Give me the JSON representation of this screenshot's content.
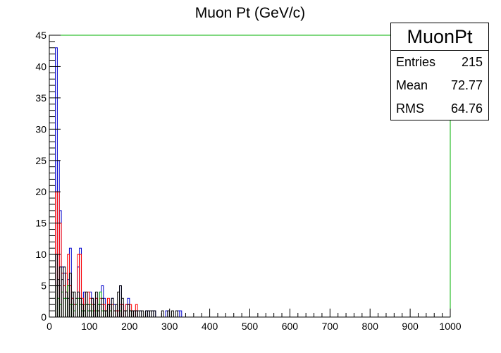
{
  "chart_data": {
    "type": "histogram",
    "title": "Muon Pt (GeV/c)",
    "xlim": [
      0,
      1000
    ],
    "ylim": [
      0,
      45
    ],
    "x_ticks": [
      0,
      100,
      200,
      300,
      400,
      500,
      600,
      700,
      800,
      900,
      1000
    ],
    "y_ticks": [
      0,
      5,
      10,
      15,
      20,
      25,
      30,
      35,
      40,
      45
    ],
    "bin_width": 5,
    "series": [
      {
        "color": "#0000cc",
        "bins": [
          [
            15,
            43
          ],
          [
            20,
            25
          ],
          [
            25,
            17
          ],
          [
            30,
            8
          ],
          [
            35,
            7
          ],
          [
            40,
            3
          ],
          [
            45,
            6
          ],
          [
            50,
            11
          ],
          [
            55,
            3
          ],
          [
            60,
            2
          ],
          [
            65,
            2
          ],
          [
            70,
            8
          ],
          [
            75,
            11
          ],
          [
            80,
            1
          ],
          [
            85,
            4
          ],
          [
            90,
            2
          ],
          [
            95,
            1
          ],
          [
            100,
            4
          ],
          [
            105,
            3
          ],
          [
            110,
            1
          ],
          [
            115,
            3
          ],
          [
            120,
            2
          ],
          [
            125,
            4
          ],
          [
            130,
            5
          ],
          [
            135,
            3
          ],
          [
            140,
            1
          ],
          [
            145,
            2
          ],
          [
            150,
            1
          ],
          [
            155,
            3
          ],
          [
            160,
            2
          ],
          [
            165,
            1
          ],
          [
            170,
            1
          ],
          [
            175,
            5
          ],
          [
            180,
            2
          ],
          [
            185,
            1
          ],
          [
            190,
            2
          ],
          [
            195,
            3
          ],
          [
            200,
            1
          ],
          [
            205,
            1
          ],
          [
            210,
            1
          ],
          [
            215,
            1
          ],
          [
            225,
            1
          ],
          [
            240,
            1
          ],
          [
            245,
            1
          ],
          [
            255,
            1
          ],
          [
            260,
            1
          ],
          [
            290,
            1
          ],
          [
            320,
            1
          ],
          [
            325,
            1
          ]
        ]
      },
      {
        "color": "#ff0000",
        "bins": [
          [
            15,
            20
          ],
          [
            20,
            20
          ],
          [
            25,
            15
          ],
          [
            30,
            7
          ],
          [
            35,
            5
          ],
          [
            40,
            7
          ],
          [
            45,
            10
          ],
          [
            50,
            5
          ],
          [
            55,
            3
          ],
          [
            60,
            2
          ],
          [
            65,
            2
          ],
          [
            70,
            10
          ],
          [
            75,
            10
          ],
          [
            80,
            3
          ],
          [
            85,
            2
          ],
          [
            90,
            4
          ],
          [
            95,
            4
          ],
          [
            100,
            3
          ],
          [
            105,
            2
          ],
          [
            110,
            1
          ],
          [
            115,
            3
          ],
          [
            120,
            1
          ],
          [
            125,
            3
          ],
          [
            130,
            2
          ],
          [
            135,
            2
          ],
          [
            140,
            1
          ],
          [
            145,
            3
          ],
          [
            150,
            1
          ],
          [
            155,
            2
          ],
          [
            160,
            1
          ],
          [
            165,
            1
          ],
          [
            170,
            1
          ],
          [
            175,
            2
          ],
          [
            180,
            2
          ],
          [
            185,
            1
          ],
          [
            190,
            2
          ],
          [
            195,
            2
          ],
          [
            200,
            2
          ],
          [
            205,
            1
          ],
          [
            210,
            1
          ],
          [
            215,
            2
          ]
        ]
      },
      {
        "color": "#00aa00",
        "bins": [
          [
            15,
            5
          ],
          [
            20,
            3
          ],
          [
            25,
            2
          ],
          [
            30,
            4
          ],
          [
            35,
            3
          ],
          [
            40,
            3
          ],
          [
            45,
            5
          ],
          [
            50,
            2
          ],
          [
            55,
            2
          ],
          [
            60,
            1
          ],
          [
            65,
            2
          ],
          [
            70,
            3
          ],
          [
            75,
            2
          ],
          [
            80,
            1
          ],
          [
            85,
            1
          ],
          [
            90,
            2
          ],
          [
            95,
            1
          ],
          [
            100,
            2
          ],
          [
            105,
            1
          ],
          [
            115,
            1
          ],
          [
            120,
            2
          ],
          [
            125,
            4
          ],
          [
            130,
            1
          ],
          [
            135,
            1
          ],
          [
            140,
            1
          ],
          [
            150,
            1
          ],
          [
            160,
            1
          ],
          [
            175,
            1
          ],
          [
            190,
            1
          ],
          [
            200,
            1
          ]
        ]
      },
      {
        "color": "#000000",
        "bins": [
          [
            15,
            10
          ],
          [
            20,
            6
          ],
          [
            25,
            8
          ],
          [
            30,
            6
          ],
          [
            35,
            8
          ],
          [
            40,
            4
          ],
          [
            45,
            3
          ],
          [
            50,
            7
          ],
          [
            55,
            4
          ],
          [
            60,
            4
          ],
          [
            65,
            3
          ],
          [
            70,
            4
          ],
          [
            75,
            3
          ],
          [
            80,
            2
          ],
          [
            85,
            1
          ],
          [
            90,
            4
          ],
          [
            95,
            2
          ],
          [
            100,
            1
          ],
          [
            105,
            3
          ],
          [
            110,
            2
          ],
          [
            115,
            4
          ],
          [
            120,
            1
          ],
          [
            125,
            2
          ],
          [
            130,
            3
          ],
          [
            135,
            1
          ],
          [
            140,
            1
          ],
          [
            145,
            2
          ],
          [
            150,
            2
          ],
          [
            155,
            3
          ],
          [
            160,
            1
          ],
          [
            165,
            2
          ],
          [
            170,
            4
          ],
          [
            175,
            5
          ],
          [
            180,
            3
          ],
          [
            185,
            1
          ],
          [
            190,
            1
          ],
          [
            195,
            2
          ],
          [
            200,
            1
          ],
          [
            205,
            1
          ],
          [
            210,
            1
          ],
          [
            215,
            1
          ],
          [
            220,
            1
          ],
          [
            225,
            1
          ],
          [
            230,
            1
          ],
          [
            240,
            1
          ],
          [
            245,
            1
          ],
          [
            250,
            1
          ],
          [
            255,
            1
          ],
          [
            260,
            1
          ],
          [
            280,
            1
          ],
          [
            295,
            1
          ],
          [
            305,
            1
          ],
          [
            315,
            1
          ]
        ]
      }
    ],
    "stats": {
      "name": "MuonPt",
      "rows": [
        {
          "label": "Entries",
          "value": "215"
        },
        {
          "label": "Mean",
          "value": "72.77"
        },
        {
          "label": "RMS",
          "value": "64.76"
        }
      ]
    }
  }
}
